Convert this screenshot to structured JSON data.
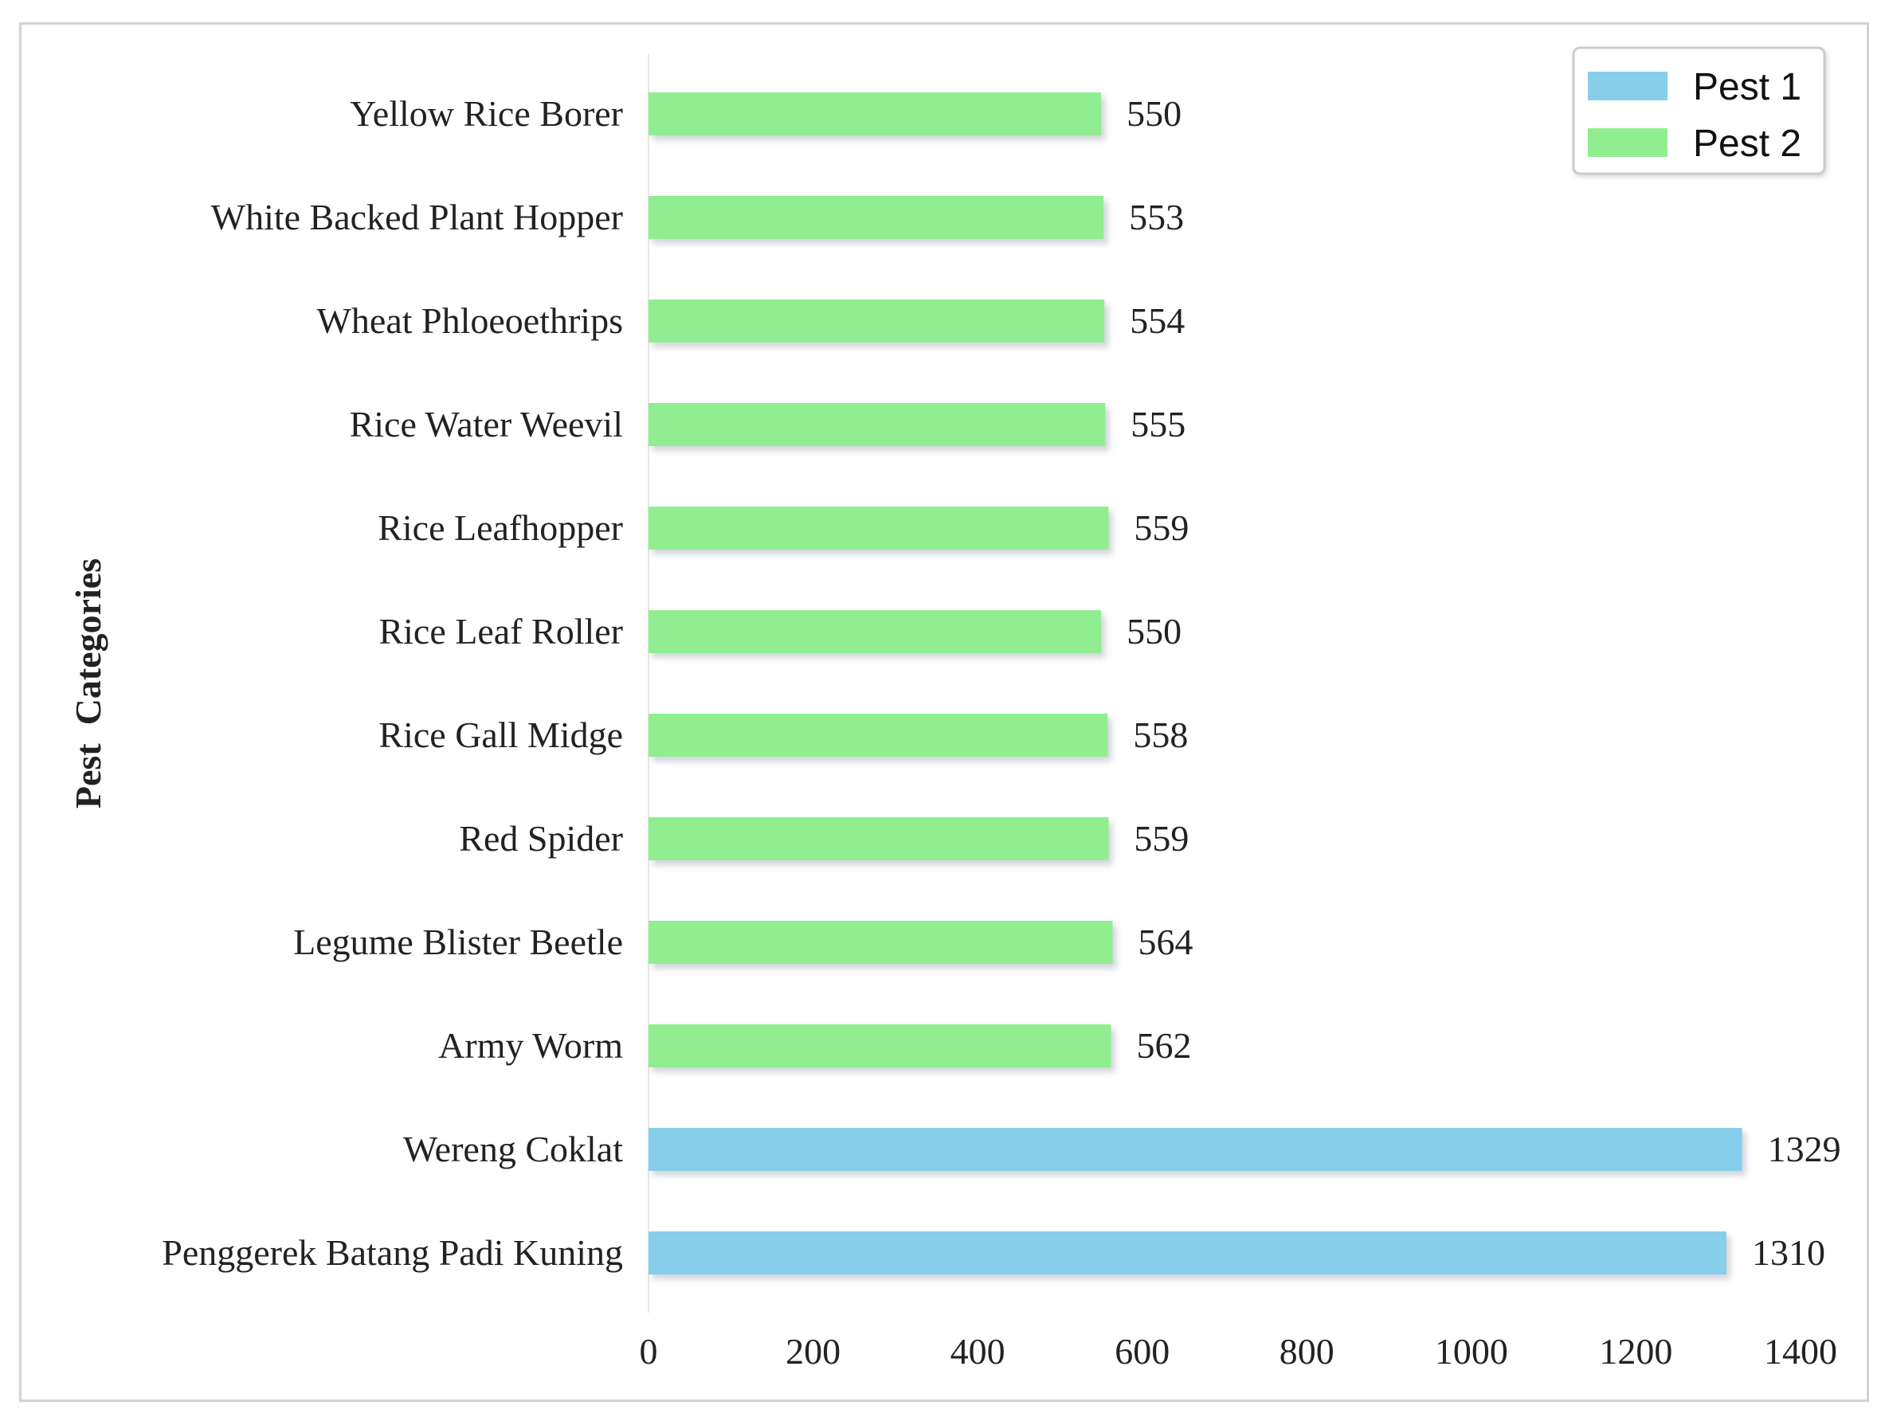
{
  "chart_data": {
    "type": "bar",
    "orientation": "horizontal",
    "ylabel": "Pest  Categories",
    "xlabel": "",
    "xlim": [
      0,
      1400
    ],
    "xticks": [
      0,
      200,
      400,
      600,
      800,
      1000,
      1200,
      1400
    ],
    "legend_position": "top-right",
    "grid": false,
    "categories": [
      "Yellow Rice Borer",
      "White Backed Plant Hopper",
      "Wheat Phloeoethrips",
      "Rice Water Weevil",
      "Rice Leafhopper",
      "Rice Leaf Roller",
      "Rice Gall Midge",
      "Red Spider",
      "Legume Blister Beetle",
      "Army Worm",
      "Wereng Coklat",
      "Penggerek Batang Padi Kuning"
    ],
    "values": [
      550,
      553,
      554,
      555,
      559,
      550,
      558,
      559,
      564,
      562,
      1329,
      1310
    ],
    "groups": [
      "Pest 2",
      "Pest 2",
      "Pest 2",
      "Pest 2",
      "Pest 2",
      "Pest 2",
      "Pest 2",
      "Pest 2",
      "Pest 2",
      "Pest 2",
      "Pest 1",
      "Pest 1"
    ],
    "series": [
      {
        "name": "Pest 1",
        "color": "#87ceeb"
      },
      {
        "name": "Pest 2",
        "color": "#90ee90"
      }
    ]
  }
}
